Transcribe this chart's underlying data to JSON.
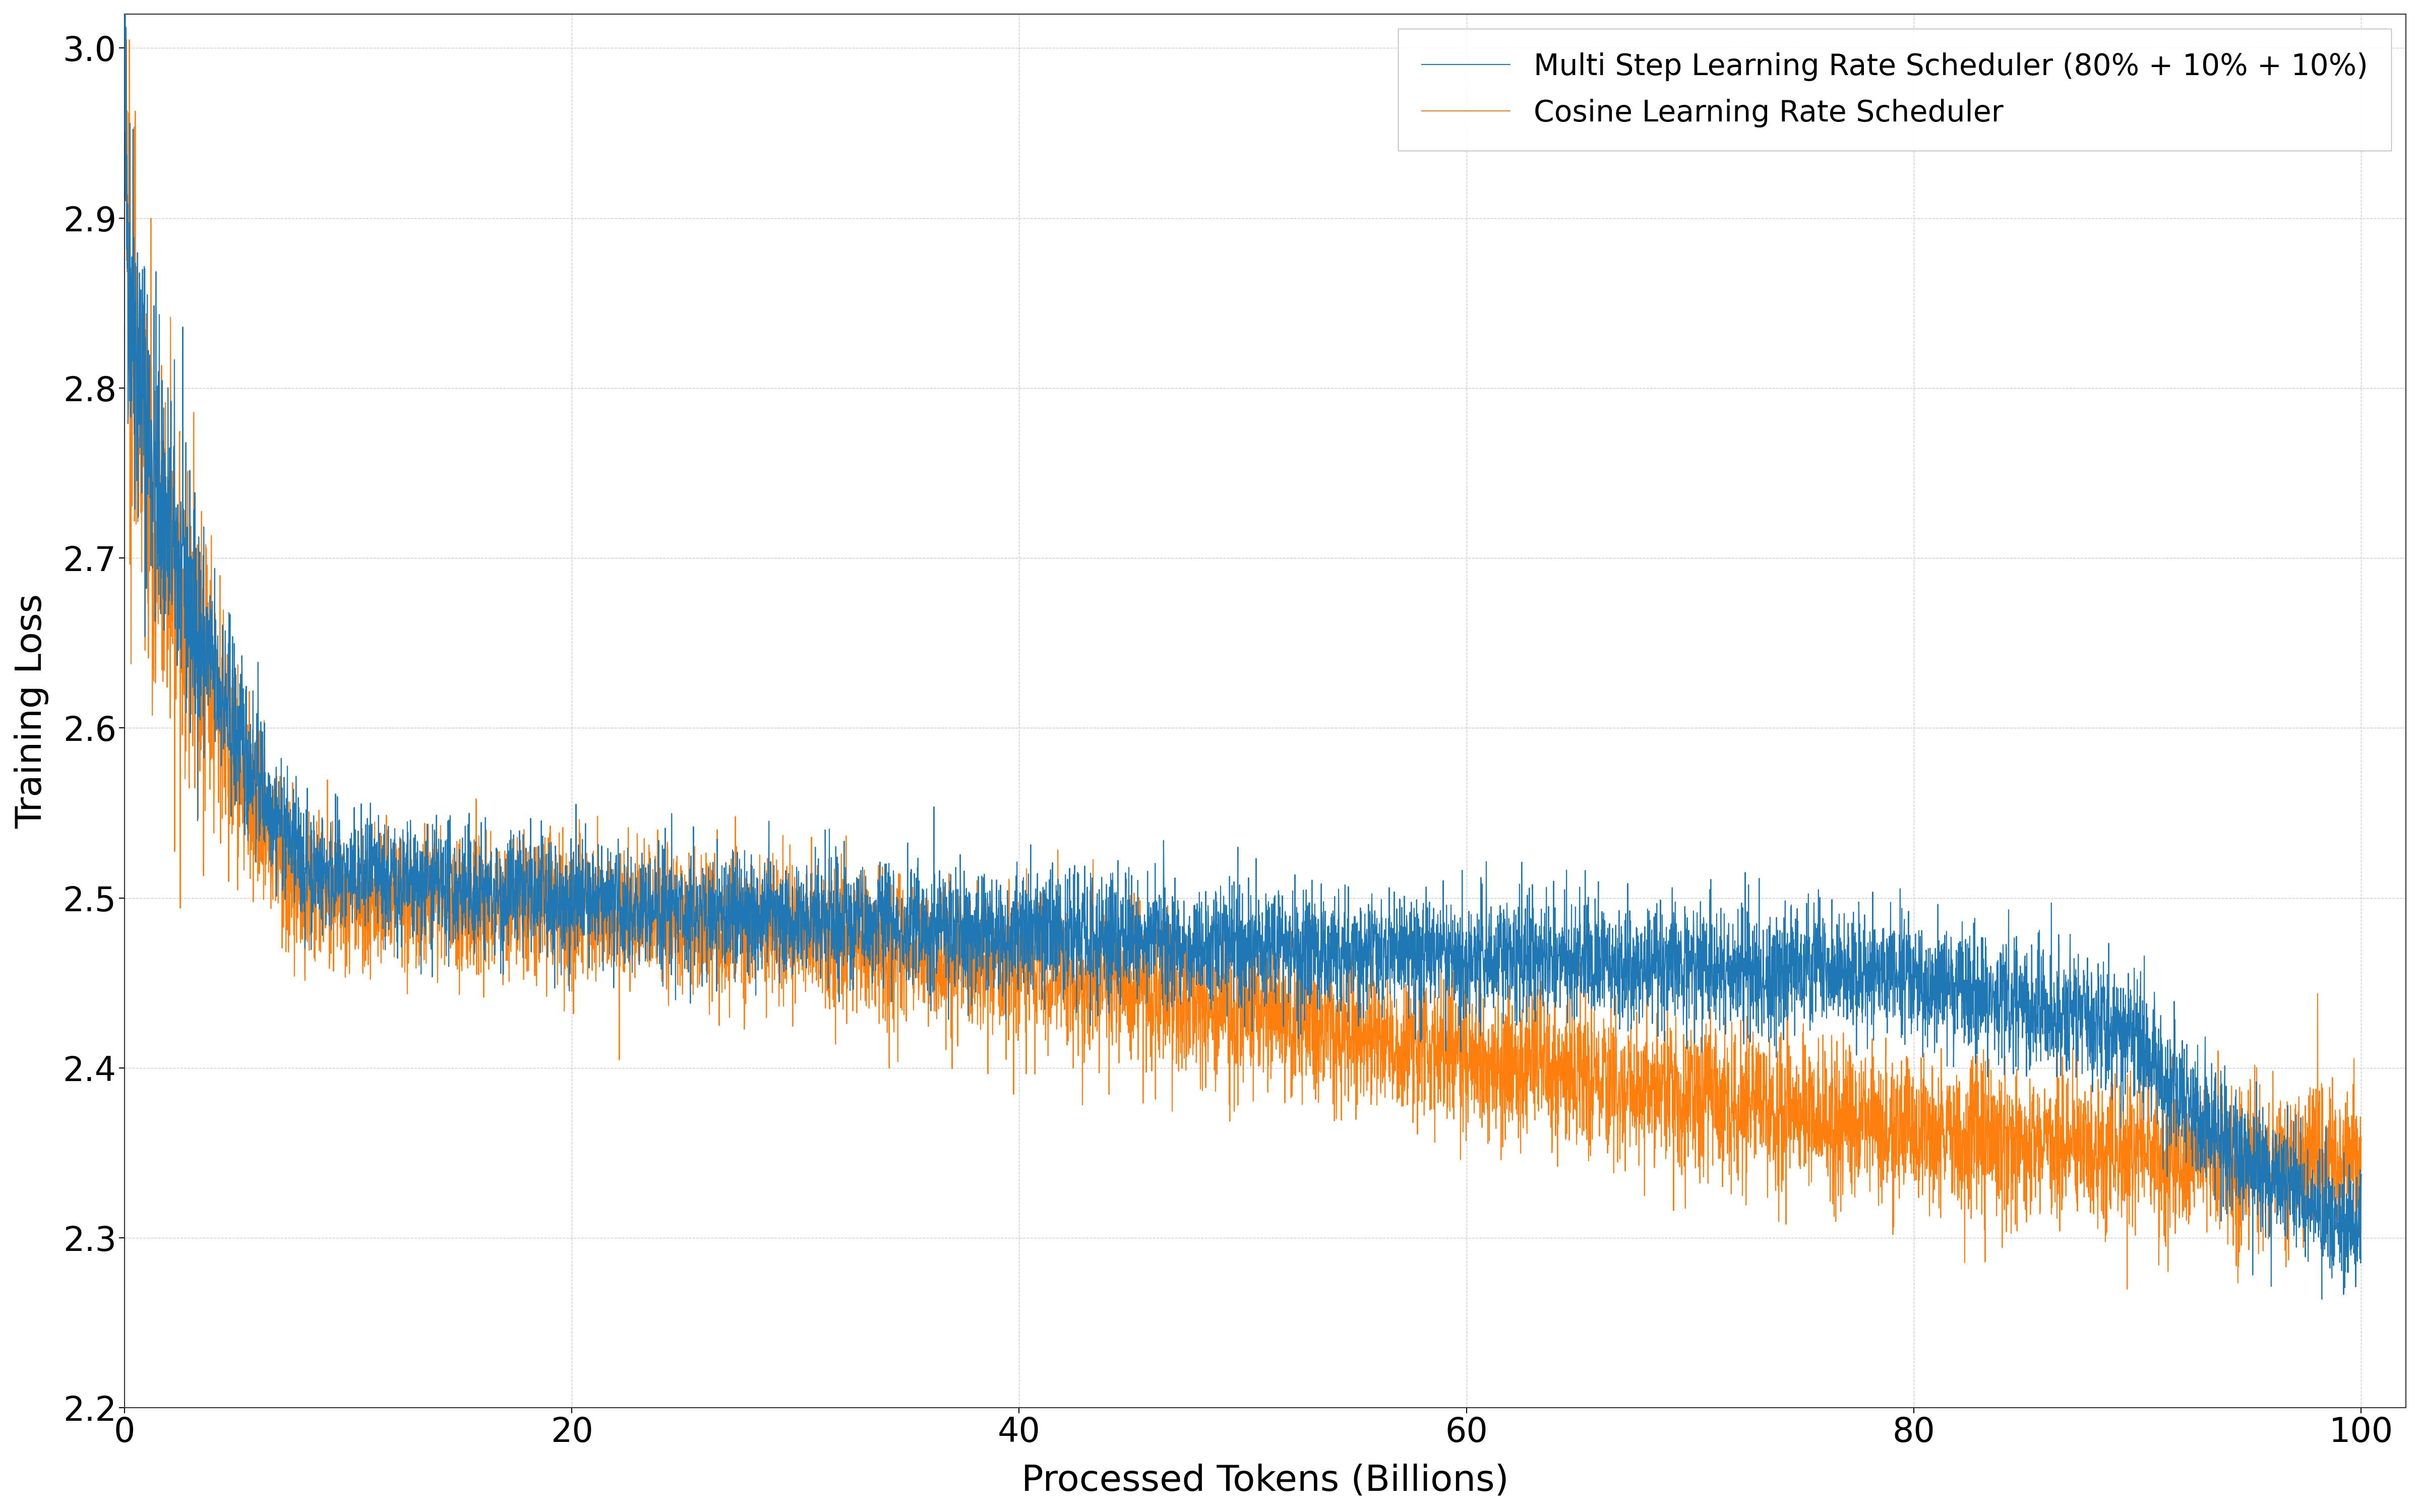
{
  "xlabel": "Processed Tokens (Billions)",
  "ylabel": "Training Loss",
  "xlim": [
    0,
    102
  ],
  "ylim": [
    2.2,
    3.02
  ],
  "xticks": [
    0,
    20,
    40,
    60,
    80,
    100
  ],
  "yticks": [
    2.2,
    2.3,
    2.4,
    2.5,
    2.6,
    2.7,
    2.8,
    2.9,
    3.0
  ],
  "multistep_color": "#1f77b4",
  "cosine_color": "#ff7f0e",
  "multistep_label": "Multi Step Learning Rate Scheduler (80% + 10% + 10%)",
  "cosine_label": "Cosine Learning Rate Scheduler",
  "n_points": 8000,
  "seed": 42,
  "background_color": "#ffffff",
  "grid_color": "#c8c8d0",
  "line_width": 1.5,
  "label_fontsize": 52,
  "tick_fontsize": 48,
  "legend_fontsize": 42
}
